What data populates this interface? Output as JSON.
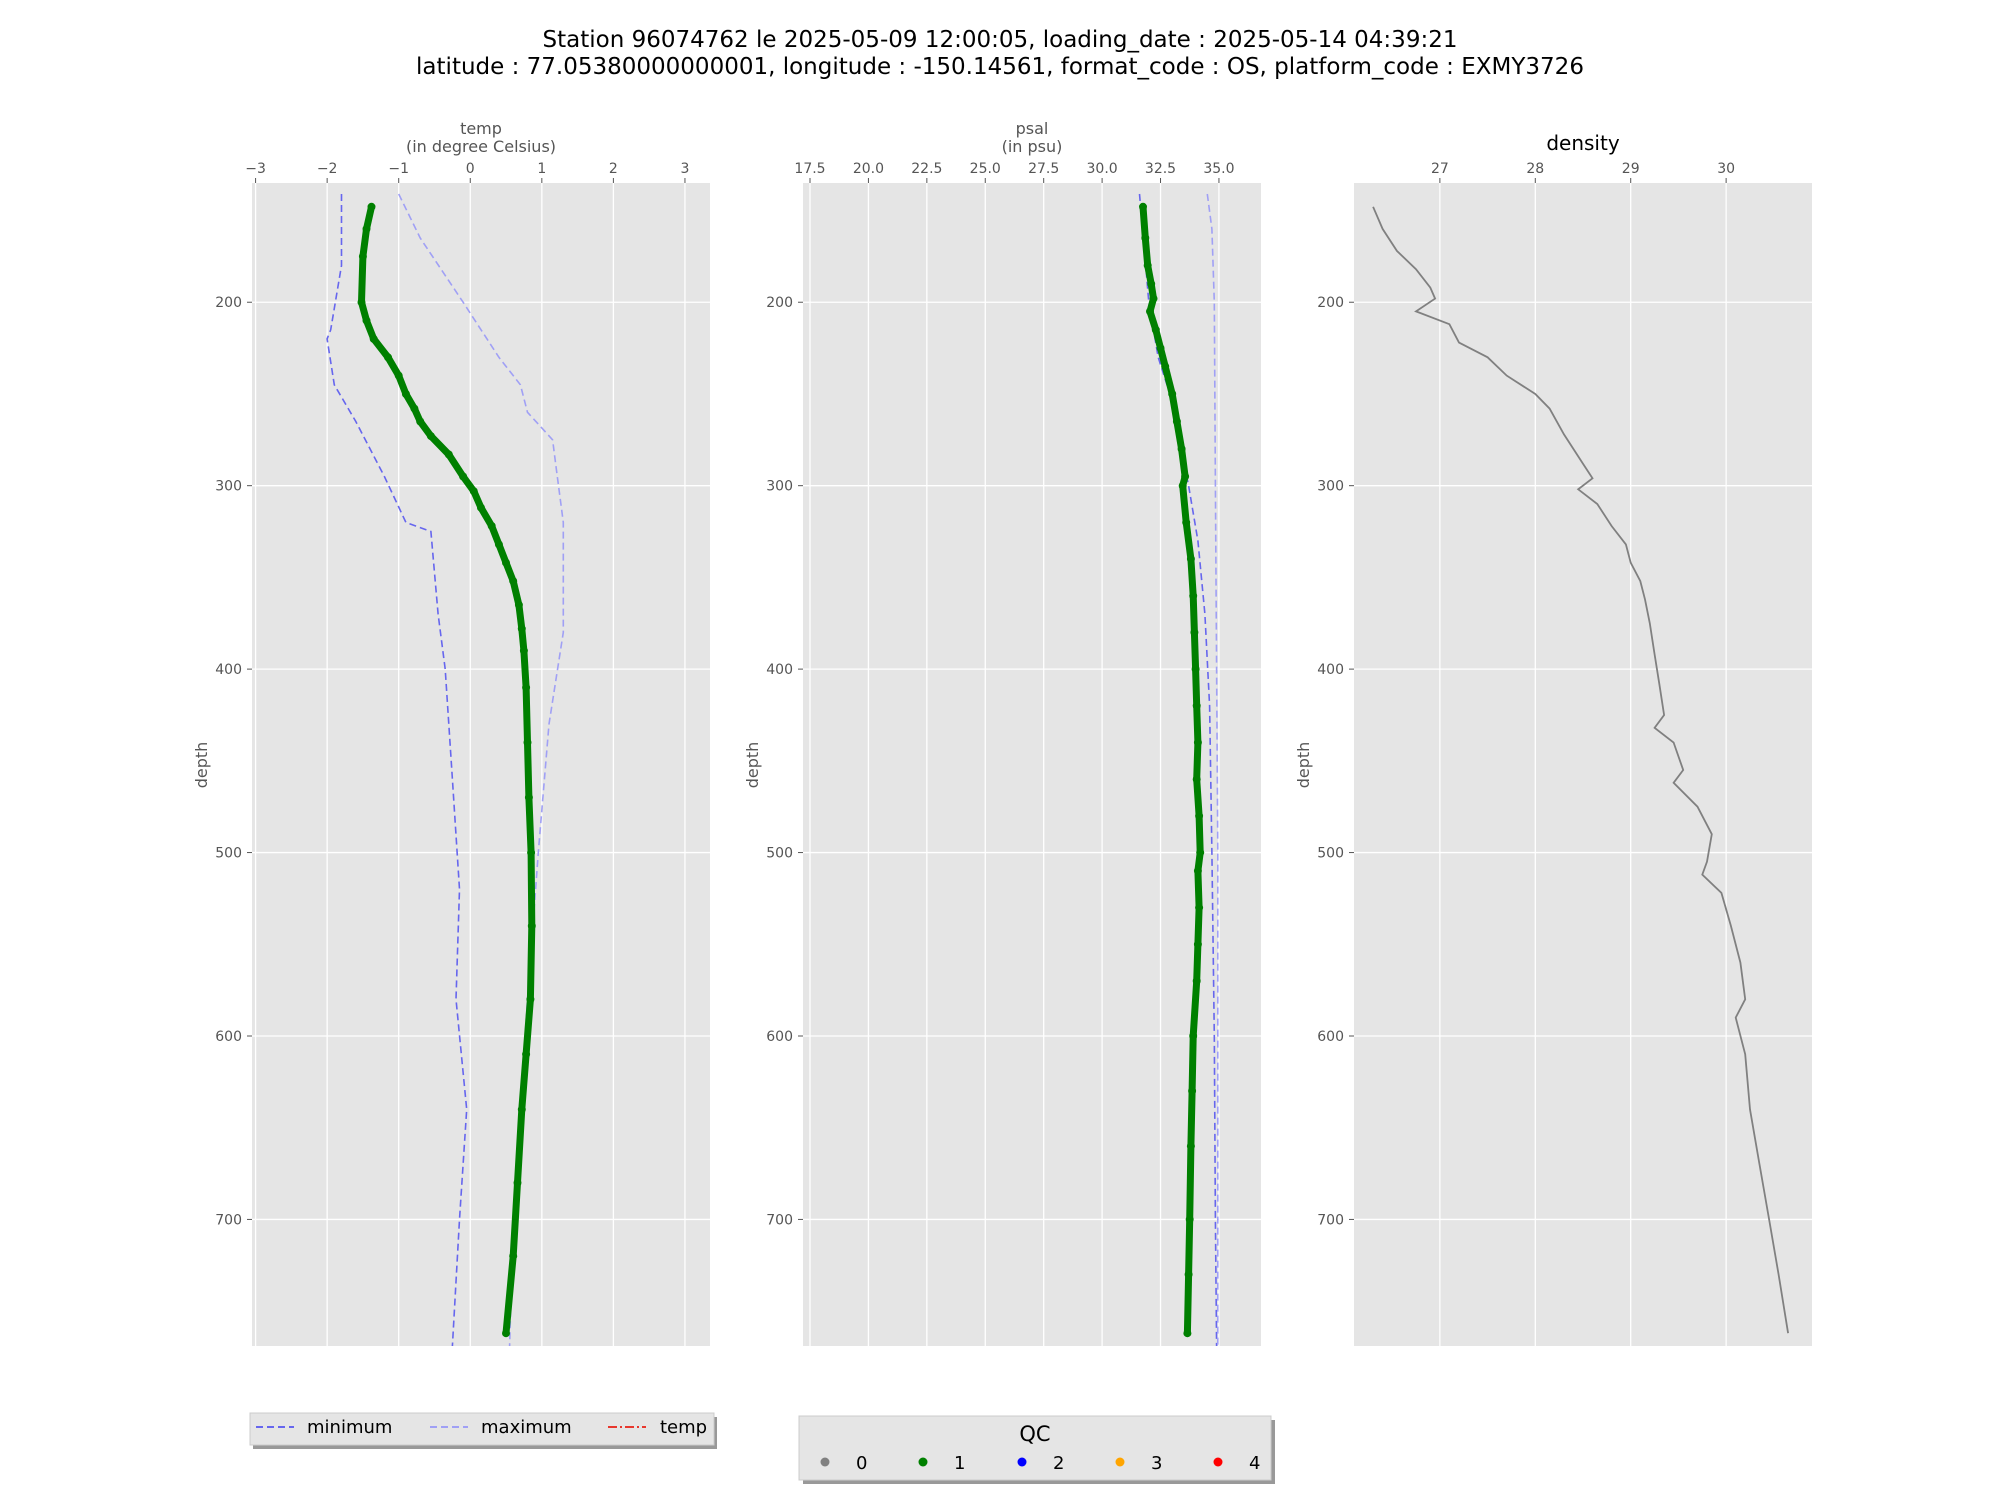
{
  "figure": {
    "title_line1": "Station 96074762 le 2025-05-09 12:00:05, loading_date : 2025-05-14 04:39:21",
    "title_line2": "latitude : 77.05380000000001, longitude : -150.14561, format_code : OS, platform_code : EXMY3726"
  },
  "colors": {
    "axes_bg": "#E5E5E5",
    "grid": "#FFFFFF",
    "qc1": "#008000",
    "minimum": "#6666EE",
    "maximum": "#A0A0F5",
    "temp_line": "#E8382E",
    "density": "#808080",
    "tick_text": "#555555"
  },
  "chart_data": [
    {
      "type": "line",
      "xlabel_line1": "temp",
      "xlabel_line2": "(in degree Celsius)",
      "ylabel": "depth",
      "xlim": [
        -3.05,
        3.35
      ],
      "ylim": [
        769,
        135
      ],
      "y_inverted": true,
      "xticks": [
        -3,
        -2,
        -1,
        0,
        1,
        2,
        3
      ],
      "xtick_labels": [
        "−3",
        "−2",
        "−1",
        "0",
        "1",
        "2",
        "3"
      ],
      "yticks": [
        200,
        300,
        400,
        500,
        600,
        700
      ],
      "grid": true,
      "x_axis_position": "top",
      "series": [
        {
          "name": "minimum",
          "style": "dashed",
          "points": [
            [
              -1.8,
              141
            ],
            [
              -1.8,
              180
            ],
            [
              -1.95,
              215
            ],
            [
              -2.0,
              220
            ],
            [
              -1.9,
              245
            ],
            [
              -1.6,
              265
            ],
            [
              -1.2,
              295
            ],
            [
              -0.9,
              320
            ],
            [
              -0.55,
              325
            ],
            [
              -0.45,
              370
            ],
            [
              -0.35,
              400
            ],
            [
              -0.25,
              460
            ],
            [
              -0.15,
              520
            ],
            [
              -0.2,
              580
            ],
            [
              -0.05,
              640
            ],
            [
              -0.15,
              700
            ],
            [
              -0.25,
              769
            ]
          ]
        },
        {
          "name": "maximum",
          "style": "dashed",
          "points": [
            [
              -1.0,
              141
            ],
            [
              -0.7,
              165
            ],
            [
              -0.1,
              200
            ],
            [
              0.4,
              230
            ],
            [
              0.7,
              245
            ],
            [
              0.8,
              260
            ],
            [
              1.15,
              275
            ],
            [
              1.2,
              290
            ],
            [
              1.3,
              320
            ],
            [
              1.3,
              380
            ],
            [
              1.1,
              430
            ],
            [
              0.95,
              500
            ],
            [
              0.8,
              580
            ],
            [
              0.7,
              640
            ],
            [
              0.6,
              700
            ],
            [
              0.55,
              769
            ]
          ]
        },
        {
          "name": "temp",
          "style": "qc-points",
          "qc": 1,
          "points": [
            [
              -1.38,
              148
            ],
            [
              -1.45,
              160
            ],
            [
              -1.5,
              175
            ],
            [
              -1.52,
              200
            ],
            [
              -1.45,
              210
            ],
            [
              -1.35,
              220
            ],
            [
              -1.15,
              230
            ],
            [
              -1.0,
              240
            ],
            [
              -0.9,
              250
            ],
            [
              -0.78,
              258
            ],
            [
              -0.7,
              265
            ],
            [
              -0.55,
              273
            ],
            [
              -0.3,
              283
            ],
            [
              -0.1,
              295
            ],
            [
              0.05,
              303
            ],
            [
              0.15,
              312
            ],
            [
              0.3,
              322
            ],
            [
              0.4,
              332
            ],
            [
              0.5,
              342
            ],
            [
              0.6,
              352
            ],
            [
              0.68,
              365
            ],
            [
              0.72,
              378
            ],
            [
              0.75,
              390
            ],
            [
              0.78,
              410
            ],
            [
              0.8,
              440
            ],
            [
              0.82,
              470
            ],
            [
              0.85,
              500
            ],
            [
              0.86,
              540
            ],
            [
              0.84,
              580
            ],
            [
              0.78,
              610
            ],
            [
              0.72,
              640
            ],
            [
              0.66,
              680
            ],
            [
              0.6,
              720
            ],
            [
              0.5,
              762
            ]
          ]
        }
      ]
    },
    {
      "type": "line",
      "xlabel_line1": "psal",
      "xlabel_line2": "(in psu)",
      "ylabel": "depth",
      "xlim": [
        17.2,
        36.8
      ],
      "ylim": [
        769,
        135
      ],
      "y_inverted": true,
      "xticks": [
        17.5,
        20.0,
        22.5,
        25.0,
        27.5,
        30.0,
        32.5,
        35.0
      ],
      "xtick_labels": [
        "17.5",
        "20.0",
        "22.5",
        "25.0",
        "27.5",
        "30.0",
        "32.5",
        "35.0"
      ],
      "yticks": [
        200,
        300,
        400,
        500,
        600,
        700
      ],
      "grid": true,
      "x_axis_position": "top",
      "series": [
        {
          "name": "minimum",
          "style": "dashed",
          "points": [
            [
              31.6,
              141
            ],
            [
              31.8,
              170
            ],
            [
              32.0,
              200
            ],
            [
              32.4,
              230
            ],
            [
              32.9,
              250
            ],
            [
              33.3,
              275
            ],
            [
              33.7,
              300
            ],
            [
              34.1,
              330
            ],
            [
              34.4,
              370
            ],
            [
              34.6,
              420
            ],
            [
              34.7,
              500
            ],
            [
              34.8,
              600
            ],
            [
              34.85,
              700
            ],
            [
              34.9,
              769
            ]
          ]
        },
        {
          "name": "maximum",
          "style": "dashed",
          "points": [
            [
              34.5,
              141
            ],
            [
              34.7,
              160
            ],
            [
              34.8,
              200
            ],
            [
              34.85,
              300
            ],
            [
              34.9,
              400
            ],
            [
              34.95,
              500
            ],
            [
              34.95,
              600
            ],
            [
              34.95,
              700
            ],
            [
              34.95,
              769
            ]
          ]
        },
        {
          "name": "psal",
          "style": "qc-points",
          "qc": 1,
          "points": [
            [
              31.75,
              148
            ],
            [
              31.85,
              165
            ],
            [
              31.95,
              180
            ],
            [
              32.1,
              190
            ],
            [
              32.2,
              198
            ],
            [
              32.05,
              205
            ],
            [
              32.3,
              215
            ],
            [
              32.5,
              225
            ],
            [
              32.7,
              235
            ],
            [
              33.0,
              250
            ],
            [
              33.2,
              265
            ],
            [
              33.4,
              280
            ],
            [
              33.55,
              295
            ],
            [
              33.45,
              300
            ],
            [
              33.6,
              320
            ],
            [
              33.8,
              340
            ],
            [
              33.9,
              360
            ],
            [
              33.95,
              380
            ],
            [
              34.0,
              400
            ],
            [
              34.05,
              420
            ],
            [
              34.1,
              440
            ],
            [
              34.05,
              460
            ],
            [
              34.15,
              480
            ],
            [
              34.2,
              500
            ],
            [
              34.1,
              510
            ],
            [
              34.15,
              530
            ],
            [
              34.1,
              550
            ],
            [
              34.05,
              570
            ],
            [
              33.9,
              600
            ],
            [
              33.85,
              630
            ],
            [
              33.8,
              660
            ],
            [
              33.75,
              700
            ],
            [
              33.7,
              730
            ],
            [
              33.65,
              762
            ]
          ]
        }
      ]
    },
    {
      "type": "line",
      "title": "density",
      "ylabel": "depth",
      "xlim": [
        26.1,
        30.9
      ],
      "ylim": [
        769,
        135
      ],
      "y_inverted": true,
      "xticks": [
        27,
        28,
        29,
        30
      ],
      "xtick_labels": [
        "27",
        "28",
        "29",
        "30"
      ],
      "yticks": [
        200,
        300,
        400,
        500,
        600,
        700
      ],
      "grid": true,
      "x_axis_position": "top",
      "series": [
        {
          "name": "density",
          "style": "solid",
          "points": [
            [
              26.3,
              148
            ],
            [
              26.4,
              160
            ],
            [
              26.55,
              172
            ],
            [
              26.75,
              182
            ],
            [
              26.9,
              192
            ],
            [
              26.95,
              198
            ],
            [
              26.75,
              205
            ],
            [
              27.1,
              212
            ],
            [
              27.2,
              222
            ],
            [
              27.5,
              230
            ],
            [
              27.7,
              240
            ],
            [
              28.0,
              250
            ],
            [
              28.15,
              258
            ],
            [
              28.3,
              272
            ],
            [
              28.5,
              288
            ],
            [
              28.6,
              296
            ],
            [
              28.45,
              302
            ],
            [
              28.65,
              310
            ],
            [
              28.8,
              322
            ],
            [
              28.95,
              332
            ],
            [
              29.0,
              342
            ],
            [
              29.1,
              352
            ],
            [
              29.15,
              362
            ],
            [
              29.2,
              375
            ],
            [
              29.25,
              392
            ],
            [
              29.3,
              408
            ],
            [
              29.35,
              425
            ],
            [
              29.25,
              432
            ],
            [
              29.45,
              440
            ],
            [
              29.55,
              455
            ],
            [
              29.45,
              462
            ],
            [
              29.7,
              475
            ],
            [
              29.85,
              490
            ],
            [
              29.8,
              505
            ],
            [
              29.75,
              512
            ],
            [
              29.95,
              522
            ],
            [
              30.05,
              540
            ],
            [
              30.15,
              560
            ],
            [
              30.2,
              580
            ],
            [
              30.1,
              590
            ],
            [
              30.2,
              610
            ],
            [
              30.25,
              640
            ],
            [
              30.35,
              670
            ],
            [
              30.45,
              700
            ],
            [
              30.55,
              730
            ],
            [
              30.65,
              762
            ]
          ]
        }
      ]
    }
  ],
  "legends": {
    "lines": {
      "items": [
        {
          "label": "minimum",
          "style": "dashed"
        },
        {
          "label": "maximum",
          "style": "dashed"
        },
        {
          "label": "temp",
          "style": "dashdot"
        }
      ]
    },
    "qc": {
      "title": "QC",
      "items": [
        {
          "label": "0",
          "color": "#808080"
        },
        {
          "label": "1",
          "color": "#008000"
        },
        {
          "label": "2",
          "color": "#0000FF"
        },
        {
          "label": "3",
          "color": "#FFA500"
        },
        {
          "label": "4",
          "color": "#FF0000"
        }
      ]
    }
  }
}
